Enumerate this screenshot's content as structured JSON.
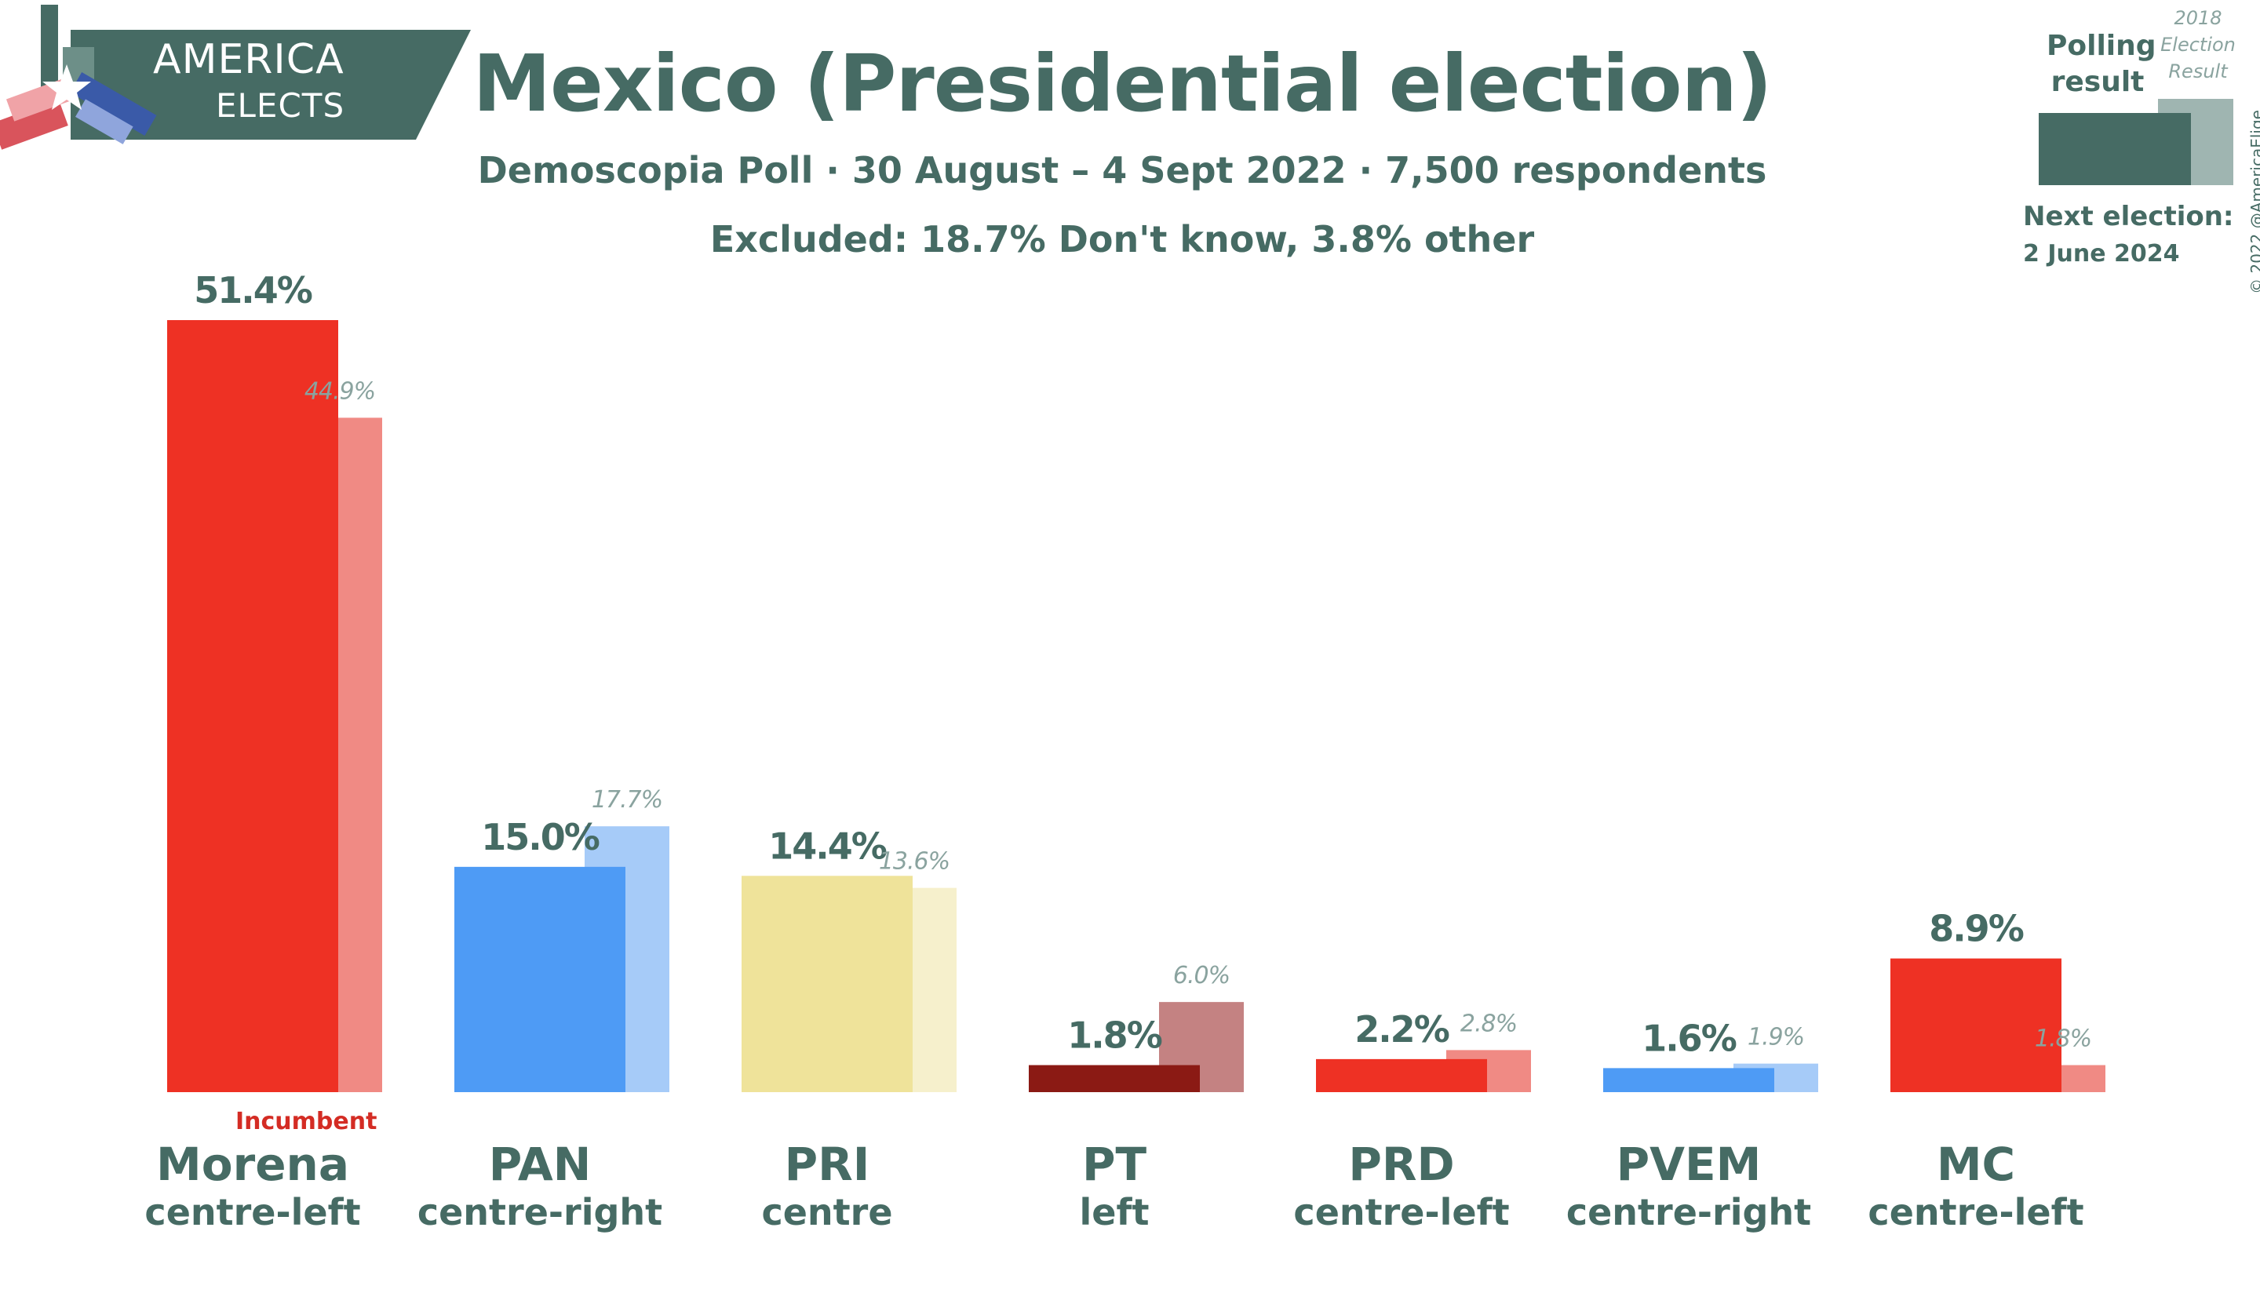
{
  "brand": {
    "line1": "AMERICA",
    "line2": "ELECTS",
    "bg_color": "#466b64"
  },
  "title": "Mexico (Presidential election)",
  "subtitle": "Demoscopia Poll · 30 August – 4 Sept 2022 · 7,500 respondents",
  "excluded": "Excluded: 18.7% Don't know, 3.8% other",
  "legend": {
    "polling_label": "Polling result",
    "previous_label": "2018 Election Result",
    "next_election_label": "Next election:",
    "next_election_date": "2 June 2024"
  },
  "incumbent_label": "Incumbent",
  "copyright": "© 2022 @AmericaElige",
  "chart_data": {
    "type": "bar",
    "categories": [
      "Morena",
      "PAN",
      "PRI",
      "PT",
      "PRD",
      "PVEM",
      "MC"
    ],
    "ideologies": [
      "centre-left",
      "centre-right",
      "centre",
      "left",
      "centre-left",
      "centre-right",
      "centre-left"
    ],
    "series": [
      {
        "name": "Polling result",
        "values": [
          51.4,
          15.0,
          14.4,
          1.8,
          2.2,
          1.6,
          8.9
        ],
        "labels": [
          "51.4%",
          "15.0%",
          "14.4%",
          "1.8%",
          "2.2%",
          "1.6%",
          "8.9%"
        ]
      },
      {
        "name": "2018 Election Result",
        "values": [
          44.9,
          17.7,
          13.6,
          6.0,
          2.8,
          1.9,
          1.8
        ],
        "labels": [
          "44.9%",
          "17.7%",
          "13.6%",
          "6.0%",
          "2.8%",
          "1.9%",
          "1.8%"
        ]
      }
    ],
    "colors": [
      "#ee3124",
      "#4e9bf5",
      "#efe39a",
      "#8b1a14",
      "#ee3124",
      "#4e9bf5",
      "#ee3124"
    ],
    "prev_colors": [
      "#f08a84",
      "#a6cbf8",
      "#f6f0cc",
      "#c48282",
      "#f08a84",
      "#a6cbf8",
      "#f08a84"
    ],
    "ylim": [
      0,
      55
    ],
    "grid": false
  }
}
